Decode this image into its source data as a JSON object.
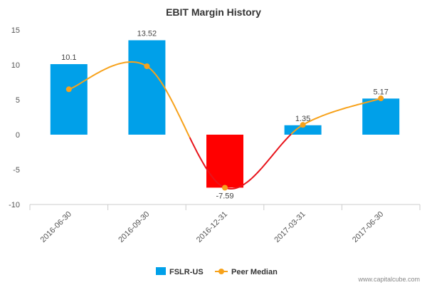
{
  "chart_data": {
    "type": "bar",
    "title": "EBIT Margin History",
    "categories": [
      "2016-06-30",
      "2016-09-30",
      "2016-12-31",
      "2017-03-31",
      "2017-06-30"
    ],
    "series": [
      {
        "name": "FSLR-US",
        "type": "bar",
        "values": [
          10.1,
          13.52,
          -7.59,
          1.35,
          5.17
        ],
        "data_labels": [
          "10.1",
          "13.52",
          "-7.59",
          "1.35",
          "5.17"
        ]
      },
      {
        "name": "Peer Median",
        "type": "line",
        "values": [
          6.5,
          9.8,
          -7.6,
          1.4,
          5.2
        ]
      }
    ],
    "ylim": [
      -10,
      15
    ],
    "yticks": [
      15,
      10,
      5,
      0,
      -5,
      -10
    ],
    "ytick_labels": [
      "15",
      "10",
      "5",
      "0",
      "-5",
      "-10"
    ],
    "xlabel": "",
    "ylabel": "",
    "legend": "bottom-center",
    "grid": false
  },
  "colors": {
    "bar_positive": "#00a0e9",
    "bar_negative": "#ff0000",
    "line_positive": "#f7a21b",
    "line_negative": "#e8141b",
    "axis": "#cccccc"
  },
  "credit": "www.capitalcube.com"
}
